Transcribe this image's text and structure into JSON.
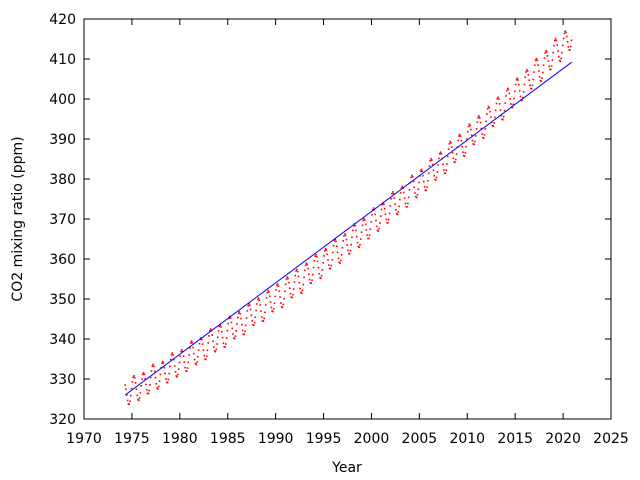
{
  "chart_data": {
    "type": "scatter",
    "title": "",
    "xlabel": "Year",
    "ylabel": "CO2 mixing ratio (ppm)",
    "xlim": [
      1970,
      2025
    ],
    "ylim": [
      320,
      420
    ],
    "x_ticks": [
      1970,
      1975,
      1980,
      1985,
      1990,
      1995,
      2000,
      2005,
      2010,
      2015,
      2020,
      2025
    ],
    "y_ticks": [
      320,
      330,
      340,
      350,
      360,
      370,
      380,
      390,
      400,
      410,
      420
    ],
    "grid": false,
    "legend": "none",
    "series": [
      {
        "kind": "scatter",
        "color": "#ff0000",
        "x_start": 1974.3,
        "x_end": 2020.9,
        "monthly": true,
        "trend_quadratic": [
          325.68,
          1.33,
          0.0126
        ],
        "trend_origin_year": 1974,
        "seasonal_amplitude": 3.2
      },
      {
        "kind": "line",
        "color": "#0000ff",
        "x": [
          1974.3,
          2020.9
        ],
        "y": [
          326,
          409.2
        ]
      }
    ]
  }
}
